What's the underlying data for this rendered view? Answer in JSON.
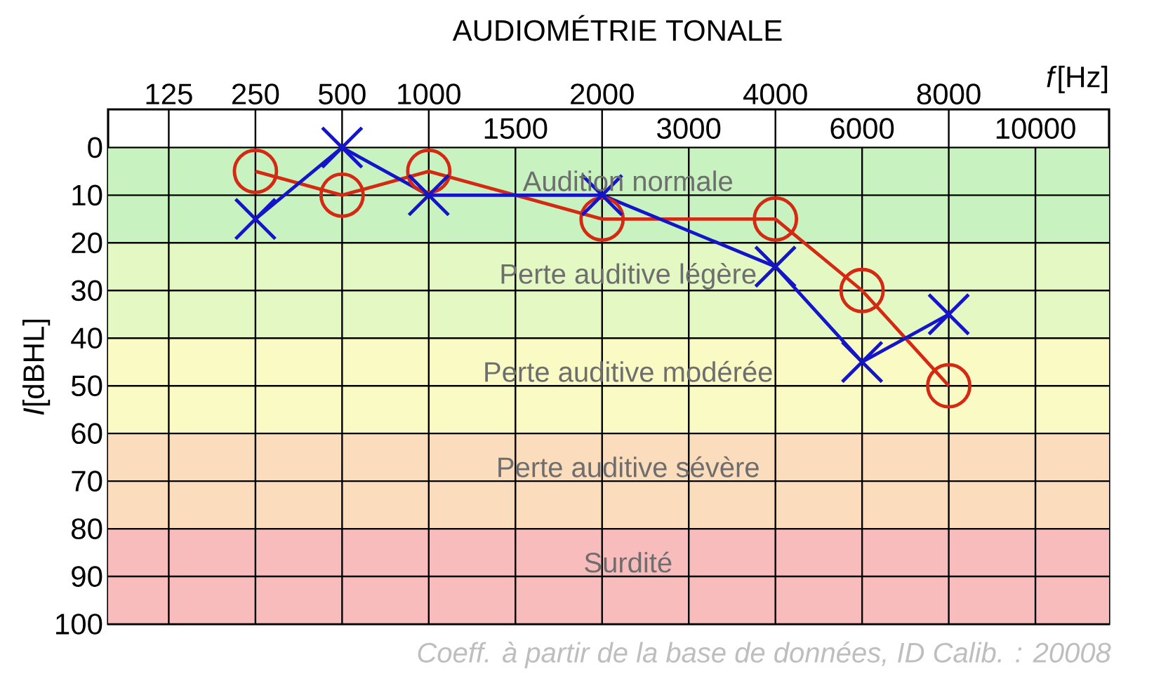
{
  "chart_data": {
    "type": "line",
    "title": "AUDIOMÉTRIE TONALE",
    "xlabel": "*f*[Hz]",
    "ylabel": "*I*[dBHL]",
    "categories": [
      "125",
      "250",
      "500",
      "1000",
      "1500",
      "2000",
      "3000",
      "4000",
      "6000",
      "8000",
      "10000"
    ],
    "series": [
      {
        "color": "#d42a14",
        "marker": "circle",
        "values": [
          null,
          5,
          10,
          5,
          null,
          15,
          null,
          15,
          30,
          50,
          null
        ]
      },
      {
        "color": "#1414c8",
        "marker": "cross",
        "values": [
          null,
          15,
          0,
          10,
          null,
          10,
          null,
          25,
          45,
          35,
          null
        ]
      }
    ],
    "ylim": [
      100,
      -8
    ],
    "yticks": [
      0,
      10,
      20,
      30,
      40,
      50,
      60,
      70,
      80,
      90,
      100
    ],
    "grid": true,
    "line_style": "solid",
    "bands": [
      {
        "axis": "y",
        "from": 0,
        "to": 20,
        "label": "Audition normale",
        "color": "#c8f2c0"
      },
      {
        "axis": "y",
        "from": 20,
        "to": 40,
        "label": "Perte auditive légère",
        "color": "#e4f8c4"
      },
      {
        "axis": "y",
        "from": 40,
        "to": 60,
        "label": "Perte auditive modérée",
        "color": "#fafac4"
      },
      {
        "axis": "y",
        "from": 60,
        "to": 80,
        "label": "Perte auditive sévère",
        "color": "#fbdcbc"
      },
      {
        "axis": "y",
        "from": 80,
        "to": 100,
        "label": "Surdité",
        "color": "#f8bcbc"
      }
    ],
    "annotations": [
      "Coeff. à partir de la base de données, ID Calib. : 20008"
    ]
  }
}
